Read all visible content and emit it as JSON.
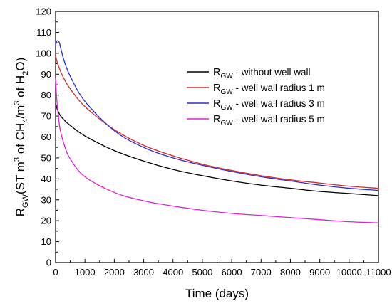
{
  "chart_data": {
    "type": "line",
    "xlabel": "Time (days)",
    "ylabel": {
      "parts": [
        {
          "t": "R",
          "s": "normal"
        },
        {
          "t": "GW",
          "s": "sub"
        },
        {
          "t": "(ST m",
          "s": "normal"
        },
        {
          "t": "3",
          "s": "sup"
        },
        {
          "t": " of CH",
          "s": "normal"
        },
        {
          "t": "4",
          "s": "sub"
        },
        {
          "t": "/m",
          "s": "normal"
        },
        {
          "t": "3",
          "s": "sup"
        },
        {
          "t": " of H",
          "s": "normal"
        },
        {
          "t": "2",
          "s": "sub"
        },
        {
          "t": "O)",
          "s": "normal"
        }
      ]
    },
    "xlim": [
      0,
      11000
    ],
    "ylim": [
      0,
      120
    ],
    "xticks": [
      0,
      1000,
      2000,
      3000,
      4000,
      5000,
      6000,
      7000,
      8000,
      9000,
      10000,
      11000
    ],
    "xtick_labels": [
      "0",
      "1000",
      "2000",
      "3000",
      "4000",
      "5000",
      "6000",
      "7000",
      "8000",
      "9000",
      "10000",
      "11000"
    ],
    "yticks": [
      0,
      10,
      20,
      30,
      40,
      50,
      60,
      70,
      80,
      90,
      100,
      110,
      120
    ],
    "ytick_labels": [
      "0",
      "10",
      "20",
      "30",
      "40",
      "50",
      "60",
      "70",
      "80",
      "90",
      "100",
      "110",
      "120"
    ],
    "legend_position": "top-right",
    "grid": false,
    "series": [
      {
        "name": "R_GW - without well wall",
        "label_main": "R",
        "label_sub": "GW",
        "label_rest": " - without well wall",
        "color": "#000000",
        "x": [
          0,
          50,
          150,
          300,
          500,
          1000,
          2000,
          3000,
          4000,
          5000,
          6000,
          7000,
          8000,
          9000,
          10000,
          11000
        ],
        "y": [
          76,
          73.5,
          70.5,
          68,
          65.5,
          60.5,
          53.5,
          48.5,
          44.5,
          41.5,
          39,
          37,
          35.5,
          34,
          33,
          32
        ]
      },
      {
        "name": "R_GW - well wall radius 1 m",
        "label_main": "R",
        "label_sub": "GW",
        "label_rest": " - well wall radius 1 m",
        "color": "#d42a2a",
        "x": [
          0,
          50,
          150,
          300,
          500,
          1000,
          2000,
          3000,
          4000,
          5000,
          6000,
          7000,
          8000,
          9000,
          10000,
          11000
        ],
        "y": [
          99,
          96,
          92,
          87.5,
          83,
          74.5,
          63.5,
          56,
          51,
          47,
          44,
          41.5,
          39.5,
          38,
          36.5,
          35.5
        ]
      },
      {
        "name": "R_GW - well wall radius 3 m",
        "label_main": "R",
        "label_sub": "GW",
        "label_rest": " - well wall radius 3 m",
        "color": "#2b2bd6",
        "x": [
          0,
          30,
          80,
          130,
          200,
          300,
          500,
          1000,
          2000,
          3000,
          4000,
          5000,
          6000,
          7000,
          8000,
          9000,
          10000,
          11000
        ],
        "y": [
          104,
          105.5,
          106,
          105,
          101,
          96,
          89,
          77,
          63,
          55,
          50,
          46.5,
          43.5,
          41,
          39,
          37,
          35.5,
          34.5
        ]
      },
      {
        "name": "R_GW - well wall radius 5 m",
        "label_main": "R",
        "label_sub": "GW",
        "label_rest": " - well wall radius 5 m",
        "color": "#e020d8",
        "x": [
          0,
          30,
          80,
          150,
          300,
          500,
          1000,
          2000,
          3000,
          4000,
          5000,
          6000,
          7000,
          8000,
          9000,
          10000,
          11000
        ],
        "y": [
          88,
          80,
          72,
          64,
          56,
          49.5,
          41,
          33.5,
          29.5,
          27,
          25,
          23.5,
          22.5,
          21.5,
          20.5,
          19.5,
          19
        ]
      }
    ]
  }
}
